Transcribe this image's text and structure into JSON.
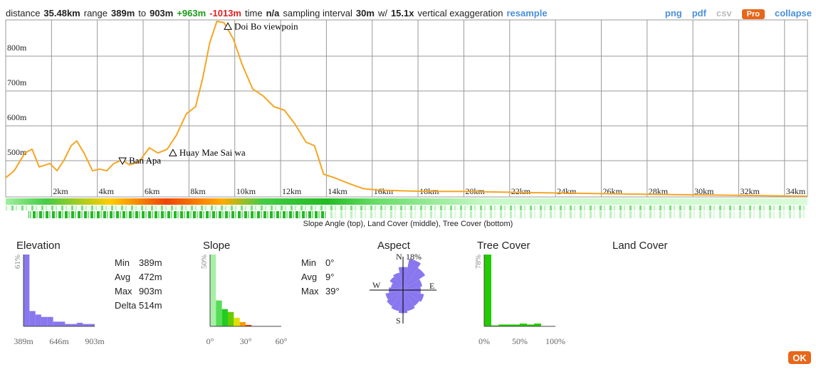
{
  "header": {
    "segments": [
      {
        "text": "distance"
      },
      {
        "text": "35.48km",
        "bold": true
      },
      {
        "text": "range"
      },
      {
        "text": "389m",
        "bold": true
      },
      {
        "text": "to"
      },
      {
        "text": "903m",
        "bold": true
      },
      {
        "text": "+963m",
        "bold": true,
        "color": "#1a9a1a"
      },
      {
        "text": "-1013m",
        "bold": true,
        "color": "#e02020"
      },
      {
        "text": "time"
      },
      {
        "text": "n/a",
        "bold": true
      },
      {
        "text": "sampling interval"
      },
      {
        "text": "30m",
        "bold": true
      },
      {
        "text": "w/"
      },
      {
        "text": "15.1x",
        "bold": true
      },
      {
        "text": "vertical exaggeration"
      },
      {
        "text": "resample",
        "bold": true,
        "color": "#4a8fd9",
        "link": true
      }
    ],
    "actions": [
      {
        "text": "png",
        "color": "#4a8fd9"
      },
      {
        "text": "pdf",
        "color": "#4a8fd9"
      },
      {
        "text": "csv",
        "color": "#bbbbbb"
      },
      {
        "text": "Pro",
        "badge": "#e8661a"
      },
      {
        "text": "collapse",
        "color": "#4a8fd9"
      }
    ]
  },
  "chart_data": {
    "type": "line",
    "color": "#f5a623",
    "x": [
      0,
      0.37,
      0.84,
      1.15,
      1.46,
      1.93,
      2.24,
      2.55,
      2.86,
      3.1,
      3.42,
      3.79,
      4.1,
      4.41,
      4.72,
      5.09,
      5.4,
      5.81,
      6.27,
      6.65,
      7.05,
      7.45,
      7.89,
      8.29,
      8.6,
      8.91,
      9.22,
      9.53,
      9.94,
      10.31,
      10.78,
      11.24,
      11.71,
      12.17,
      12.64,
      13.11,
      13.48,
      13.88,
      14.35,
      14.97,
      15.59,
      16.21,
      17.14,
      18.39,
      19.94,
      21.49,
      23.35,
      25.53,
      27.7,
      30.19,
      32.67,
      34.97
    ],
    "values": [
      451,
      471,
      522,
      533,
      482,
      492,
      471,
      502,
      543,
      557,
      522,
      471,
      476,
      471,
      492,
      502,
      488,
      496,
      537,
      522,
      533,
      573,
      635,
      655,
      737,
      839,
      900,
      896,
      849,
      778,
      706,
      686,
      655,
      645,
      604,
      553,
      543,
      461,
      451,
      435,
      420,
      416,
      414,
      412,
      412,
      410,
      408,
      406,
      404,
      402,
      400,
      398
    ],
    "xlim": [
      0,
      35
    ],
    "ylim": [
      396,
      904
    ],
    "xticks": [
      {
        "value": 2,
        "label": "2km"
      },
      {
        "value": 4,
        "label": "4km"
      },
      {
        "value": 6,
        "label": "6km"
      },
      {
        "value": 8,
        "label": "8km"
      },
      {
        "value": 10,
        "label": "10km"
      },
      {
        "value": 12,
        "label": "12km"
      },
      {
        "value": 14,
        "label": "14km"
      },
      {
        "value": 16,
        "label": "16km"
      },
      {
        "value": 18,
        "label": "18km"
      },
      {
        "value": 20,
        "label": "20km"
      },
      {
        "value": 22,
        "label": "22km"
      },
      {
        "value": 24,
        "label": "24km"
      },
      {
        "value": 26,
        "label": "26km"
      },
      {
        "value": 28,
        "label": "28km"
      },
      {
        "value": 30,
        "label": "30km"
      },
      {
        "value": 32,
        "label": "32km"
      },
      {
        "value": 34,
        "label": "34km"
      }
    ],
    "yticks": [
      {
        "value": 500,
        "label": "500m"
      },
      {
        "value": 600,
        "label": "600m"
      },
      {
        "value": 700,
        "label": "700m"
      },
      {
        "value": 800,
        "label": "800m"
      }
    ],
    "grid": true,
    "annotations": [
      {
        "text": "Doi Bo viewpoin",
        "x": 9.7,
        "y": 885,
        "marker": "up"
      },
      {
        "text": "Huay Mae Sai wa",
        "x": 7.3,
        "y": 522,
        "marker": "up"
      },
      {
        "text": "Ban Apa",
        "x": 5.1,
        "y": 500,
        "marker": "down"
      }
    ],
    "strips_caption": "Slope Angle (top), Land Cover (middle), Tree Cover (bottom)"
  },
  "panels": {
    "elevation": {
      "title": "Elevation",
      "color": "#8877ee",
      "bins": [
        389,
        432,
        475,
        517,
        560,
        603,
        646,
        689,
        732,
        774,
        817,
        860,
        903
      ],
      "values": [
        61,
        13,
        10,
        8,
        8,
        4,
        4,
        2,
        2,
        3,
        2,
        2
      ],
      "ylim": [
        0,
        61
      ],
      "yticks": [
        {
          "value": 61,
          "label": "61%"
        }
      ],
      "xlim": [
        389,
        903
      ],
      "xticks": [
        {
          "value": 389,
          "label": "389m"
        },
        {
          "value": 646,
          "label": "646m"
        },
        {
          "value": 903,
          "label": "903m"
        }
      ],
      "stats": [
        {
          "label": "Min",
          "value": "389m"
        },
        {
          "label": "Avg",
          "value": "472m"
        },
        {
          "label": "Max",
          "value": "903m"
        },
        {
          "label": "Delta",
          "value": "514m"
        }
      ]
    },
    "slope": {
      "title": "Slope",
      "colors": [
        "#a8f0a8",
        "#55dd55",
        "#22cc22",
        "#66cc00",
        "#e0e000",
        "#ff9900",
        "#ee3300",
        "#cc0000"
      ],
      "bins": [
        0,
        5,
        10,
        15,
        20,
        25,
        30,
        35,
        40
      ],
      "values": [
        50,
        18,
        12,
        10,
        6,
        3,
        1,
        0
      ],
      "ylim": [
        0,
        50
      ],
      "yticks": [
        {
          "value": 50,
          "label": "50%"
        }
      ],
      "xlim": [
        0,
        60
      ],
      "xticks": [
        {
          "value": 0,
          "label": "0°"
        },
        {
          "value": 30,
          "label": "30°"
        },
        {
          "value": 60,
          "label": "60°"
        }
      ],
      "stats": [
        {
          "label": "Min",
          "value": "0°"
        },
        {
          "label": "Avg",
          "value": "9°"
        },
        {
          "label": "Max",
          "value": "39°"
        }
      ]
    },
    "aspect": {
      "title": "Aspect",
      "color": "#8877ee",
      "directions": [
        "N",
        "E",
        "S",
        "W"
      ],
      "rmax": {
        "value": 18,
        "label": "18%"
      },
      "sectors": [
        13,
        18,
        15,
        11,
        10,
        12,
        11,
        12,
        13,
        12,
        11,
        10,
        8,
        7,
        9,
        10
      ]
    },
    "tree_cover": {
      "title": "Tree Cover",
      "color": "#22cc00",
      "bins": [
        0,
        10,
        20,
        30,
        40,
        50,
        60,
        70,
        80,
        90,
        100
      ],
      "values": [
        78,
        1,
        2,
        2,
        2,
        3,
        2,
        3,
        0,
        0
      ],
      "ylim": [
        0,
        78
      ],
      "yticks": [
        {
          "value": 78,
          "label": "78%"
        }
      ],
      "xlim": [
        0,
        100
      ],
      "xticks": [
        {
          "value": 0,
          "label": "0%"
        },
        {
          "value": 50,
          "label": "50%"
        },
        {
          "value": 100,
          "label": "100%"
        }
      ]
    },
    "land_cover": {
      "title": "Land Cover"
    }
  },
  "ok": "OK"
}
